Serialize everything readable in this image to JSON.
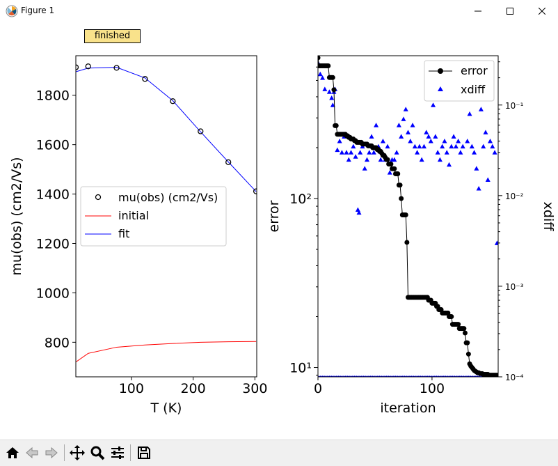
{
  "window": {
    "title": "Figure 1"
  },
  "status": {
    "label": "finished"
  },
  "toolbar": {
    "icons": [
      "home-icon",
      "back-arrow-icon",
      "forward-arrow-icon",
      "pan-icon",
      "zoom-icon",
      "configure-subplots-icon",
      "save-icon"
    ]
  },
  "colors": {
    "fit": "#0000ff",
    "initial": "#ff0000",
    "error": "#000000",
    "xdiff": "#0000ff",
    "badge": "#f9e28b"
  },
  "chart_data": [
    {
      "type": "line",
      "xlabel": "T (K)",
      "ylabel": "mu(obs) (cm2/Vs)",
      "xlim": [
        10,
        303
      ],
      "ylim": [
        660,
        1960
      ],
      "xticks": [
        100,
        200,
        300
      ],
      "yticks": [
        800,
        1000,
        1200,
        1400,
        1600,
        1800
      ],
      "legend_position": "center-left",
      "series": [
        {
          "name": "mu(obs) (cm2/Vs)",
          "style": "open-circle-markers",
          "x": [
            10,
            30,
            76,
            122,
            167,
            212,
            257,
            302
          ],
          "y": [
            1913,
            1917,
            1911,
            1866,
            1776,
            1654,
            1529,
            1411
          ]
        },
        {
          "name": "initial",
          "style": "red-line",
          "x": [
            10,
            30,
            76,
            122,
            167,
            212,
            257,
            302
          ],
          "y": [
            720,
            755,
            780,
            789,
            795,
            800,
            802,
            803
          ]
        },
        {
          "name": "fit",
          "style": "blue-line",
          "x": [
            10,
            30,
            76,
            122,
            167,
            212,
            257,
            302
          ],
          "y": [
            1895,
            1910,
            1913,
            1870,
            1778,
            1652,
            1530,
            1410
          ]
        }
      ]
    },
    {
      "type": "line",
      "xlabel": "iteration",
      "ylabel": "error",
      "y2label": "xdiff",
      "xlim": [
        0,
        158
      ],
      "yscale": "log",
      "ylim": [
        8.8,
        700
      ],
      "y2scale": "log",
      "y2lim": [
        0.0001,
        0.35
      ],
      "xticks": [
        0,
        100
      ],
      "yticks": [
        10,
        100
      ],
      "ytick_labels": [
        "10¹",
        "10²"
      ],
      "y2ticks": [
        0.0001,
        0.001,
        0.01,
        0.1
      ],
      "y2tick_labels": [
        "10⁻⁴",
        "10⁻³",
        "10⁻²",
        "10⁻¹"
      ],
      "legend_position": "upper-right",
      "series": [
        {
          "name": "error",
          "axis": "left",
          "style": "black-line-filled-circles",
          "x": [
            0,
            1,
            2,
            3,
            4,
            5,
            6,
            7,
            8,
            9,
            10,
            11,
            12,
            13,
            14,
            15,
            16,
            17,
            18,
            19,
            20,
            21,
            22,
            23,
            24,
            25,
            26,
            27,
            28,
            29,
            30,
            31,
            32,
            33,
            34,
            35,
            36,
            37,
            38,
            39,
            40,
            41,
            42,
            43,
            44,
            45,
            46,
            47,
            48,
            49,
            50,
            51,
            52,
            53,
            54,
            55,
            56,
            57,
            58,
            59,
            60,
            61,
            62,
            63,
            64,
            65,
            66,
            67,
            68,
            69,
            70,
            71,
            72,
            73,
            74,
            75,
            76,
            77,
            78,
            79,
            80,
            81,
            82,
            83,
            84,
            85,
            86,
            87,
            88,
            89,
            90,
            91,
            92,
            93,
            94,
            95,
            96,
            97,
            98,
            99,
            100,
            101,
            102,
            103,
            104,
            105,
            106,
            107,
            108,
            109,
            110,
            111,
            112,
            113,
            114,
            115,
            116,
            117,
            118,
            119,
            120,
            121,
            122,
            123,
            124,
            125,
            126,
            127,
            128,
            129,
            130,
            131,
            132,
            133,
            134,
            135,
            136,
            137,
            138,
            139,
            140,
            141,
            142,
            143,
            144,
            145,
            146,
            147,
            148,
            149,
            150,
            151,
            152,
            153,
            154,
            155,
            156,
            157
          ],
          "y": [
            680,
            610,
            610,
            610,
            610,
            610,
            610,
            610,
            610,
            610,
            520,
            520,
            520,
            520,
            440,
            270,
            270,
            240,
            240,
            240,
            240,
            240,
            240,
            240,
            240,
            235,
            235,
            230,
            230,
            225,
            225,
            225,
            220,
            220,
            215,
            215,
            215,
            215,
            215,
            210,
            210,
            210,
            210,
            210,
            205,
            205,
            205,
            205,
            200,
            200,
            200,
            200,
            195,
            195,
            190,
            190,
            185,
            180,
            180,
            175,
            170,
            170,
            160,
            160,
            160,
            150,
            150,
            150,
            140,
            140,
            140,
            120,
            120,
            100,
            80,
            80,
            80,
            80,
            55,
            26,
            26,
            26,
            26,
            26,
            26,
            26,
            26,
            26,
            26,
            26,
            26,
            26,
            26,
            26,
            26,
            26,
            26,
            25,
            25,
            25,
            24,
            24,
            24,
            24,
            23,
            23,
            22,
            22,
            22,
            21,
            21,
            21,
            21,
            21,
            21,
            20,
            20,
            20,
            18,
            18,
            18,
            18,
            18,
            18,
            17,
            17,
            17,
            17,
            17,
            16,
            14,
            14,
            12,
            10.5,
            10.2,
            10.0,
            9.8,
            9.6,
            9.5,
            9.4,
            9.3,
            9.3,
            9.2,
            9.2,
            9.2,
            9.1,
            9.1,
            9.1,
            9.1,
            9.1,
            9.0,
            9.0,
            9.0,
            9.0,
            9.0,
            9.0,
            9.0,
            9.0
          ]
        },
        {
          "name": "xdiff",
          "axis": "right",
          "style": "blue-triangle-markers",
          "x": [
            1,
            2,
            4,
            6,
            10,
            12,
            13,
            14,
            15,
            17,
            19,
            21,
            23,
            25,
            27,
            29,
            31,
            33,
            35,
            36,
            37,
            39,
            41,
            43,
            45,
            47,
            49,
            51,
            53,
            55,
            57,
            59,
            61,
            63,
            65,
            67,
            69,
            71,
            73,
            75,
            77,
            79,
            81,
            83,
            85,
            87,
            89,
            91,
            93,
            95,
            97,
            99,
            101,
            103,
            105,
            107,
            109,
            111,
            113,
            115,
            117,
            119,
            121,
            123,
            125,
            127,
            129,
            131,
            133,
            135,
            137,
            139,
            141,
            143,
            145,
            147,
            149,
            151,
            153,
            155,
            157
          ],
          "y": [
            0.28,
            0.22,
            0.2,
            0.15,
            0.14,
            0.12,
            0.1,
            0.14,
            0.15,
            0.032,
            0.04,
            0.03,
            0.045,
            0.03,
            0.025,
            0.03,
            0.035,
            0.027,
            0.007,
            0.0065,
            0.03,
            0.035,
            0.02,
            0.025,
            0.03,
            0.045,
            0.03,
            0.06,
            0.035,
            0.025,
            0.04,
            0.025,
            0.035,
            0.018,
            0.025,
            0.025,
            0.03,
            0.06,
            0.045,
            0.07,
            0.09,
            0.05,
            0.04,
            0.06,
            0.035,
            0.03,
            0.035,
            0.025,
            0.035,
            0.05,
            0.045,
            0.04,
            0.1,
            0.045,
            0.03,
            0.025,
            0.035,
            0.04,
            0.03,
            0.022,
            0.035,
            0.045,
            0.035,
            0.04,
            0.03,
            0.035,
            0.25,
            0.04,
            0.08,
            0.035,
            0.03,
            0.02,
            0.012,
            0.09,
            0.035,
            0.05,
            0.015,
            0.04,
            0.035,
            0.03,
            0.003
          ]
        }
      ]
    }
  ]
}
